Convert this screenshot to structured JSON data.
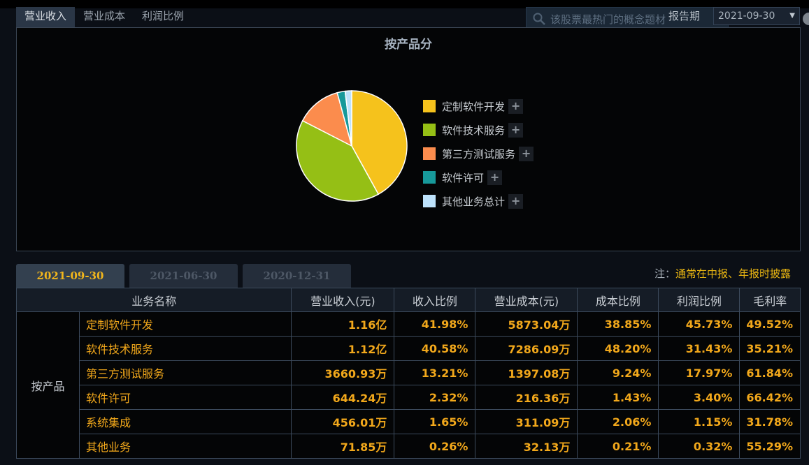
{
  "tabs": [
    {
      "label": "营业收入",
      "active": true
    },
    {
      "label": "营业成本",
      "active": false
    },
    {
      "label": "利润比例",
      "active": false
    }
  ],
  "search": {
    "placeholder": "该股票最热门的概念题材"
  },
  "report": {
    "label": "报告期",
    "selected": "2021-09-30"
  },
  "chart": {
    "title": "按产品分",
    "legend": [
      {
        "label": "定制软件开发",
        "color": "#f5c21c"
      },
      {
        "label": "软件技术服务",
        "color": "#95bf15"
      },
      {
        "label": "第三方测试服务",
        "color": "#fb8c4d"
      },
      {
        "label": "软件许可",
        "color": "#17999a"
      },
      {
        "label": "其他业务总计",
        "color": "#bde2fb"
      }
    ],
    "plus": "+"
  },
  "chart_data": {
    "type": "pie",
    "title": "按产品分",
    "categories": [
      "定制软件开发",
      "软件技术服务",
      "第三方测试服务",
      "软件许可",
      "其他业务总计"
    ],
    "values": [
      41.98,
      40.58,
      13.21,
      2.32,
      1.91
    ],
    "colors": [
      "#f5c21c",
      "#95bf15",
      "#fb8c4d",
      "#17999a",
      "#bde2fb"
    ],
    "legend_position": "right"
  },
  "period_tabs": [
    {
      "label": "2021-09-30",
      "active": true
    },
    {
      "label": "2021-06-30",
      "active": false
    },
    {
      "label": "2020-12-31",
      "active": false
    }
  ],
  "note": {
    "prefix": "注：",
    "text": "通常在中报、年报时披露"
  },
  "table": {
    "headers": [
      "业务名称",
      "营业收入(元)",
      "收入比例",
      "营业成本(元)",
      "成本比例",
      "利润比例",
      "毛利率"
    ],
    "group": "按产品",
    "rows": [
      {
        "name": "定制软件开发",
        "revenue": "1.16亿",
        "rev_ratio": "41.98%",
        "cost": "5873.04万",
        "cost_ratio": "38.85%",
        "profit_ratio": "45.73%",
        "margin": "49.52%"
      },
      {
        "name": "软件技术服务",
        "revenue": "1.12亿",
        "rev_ratio": "40.58%",
        "cost": "7286.09万",
        "cost_ratio": "48.20%",
        "profit_ratio": "31.43%",
        "margin": "35.21%"
      },
      {
        "name": "第三方测试服务",
        "revenue": "3660.93万",
        "rev_ratio": "13.21%",
        "cost": "1397.08万",
        "cost_ratio": "9.24%",
        "profit_ratio": "17.97%",
        "margin": "61.84%"
      },
      {
        "name": "软件许可",
        "revenue": "644.24万",
        "rev_ratio": "2.32%",
        "cost": "216.36万",
        "cost_ratio": "1.43%",
        "profit_ratio": "3.40%",
        "margin": "66.42%"
      },
      {
        "name": "系统集成",
        "revenue": "456.01万",
        "rev_ratio": "1.65%",
        "cost": "311.09万",
        "cost_ratio": "2.06%",
        "profit_ratio": "1.15%",
        "margin": "31.78%"
      },
      {
        "name": "其他业务",
        "revenue": "71.85万",
        "rev_ratio": "0.26%",
        "cost": "32.13万",
        "cost_ratio": "0.21%",
        "profit_ratio": "0.32%",
        "margin": "55.29%"
      }
    ]
  }
}
